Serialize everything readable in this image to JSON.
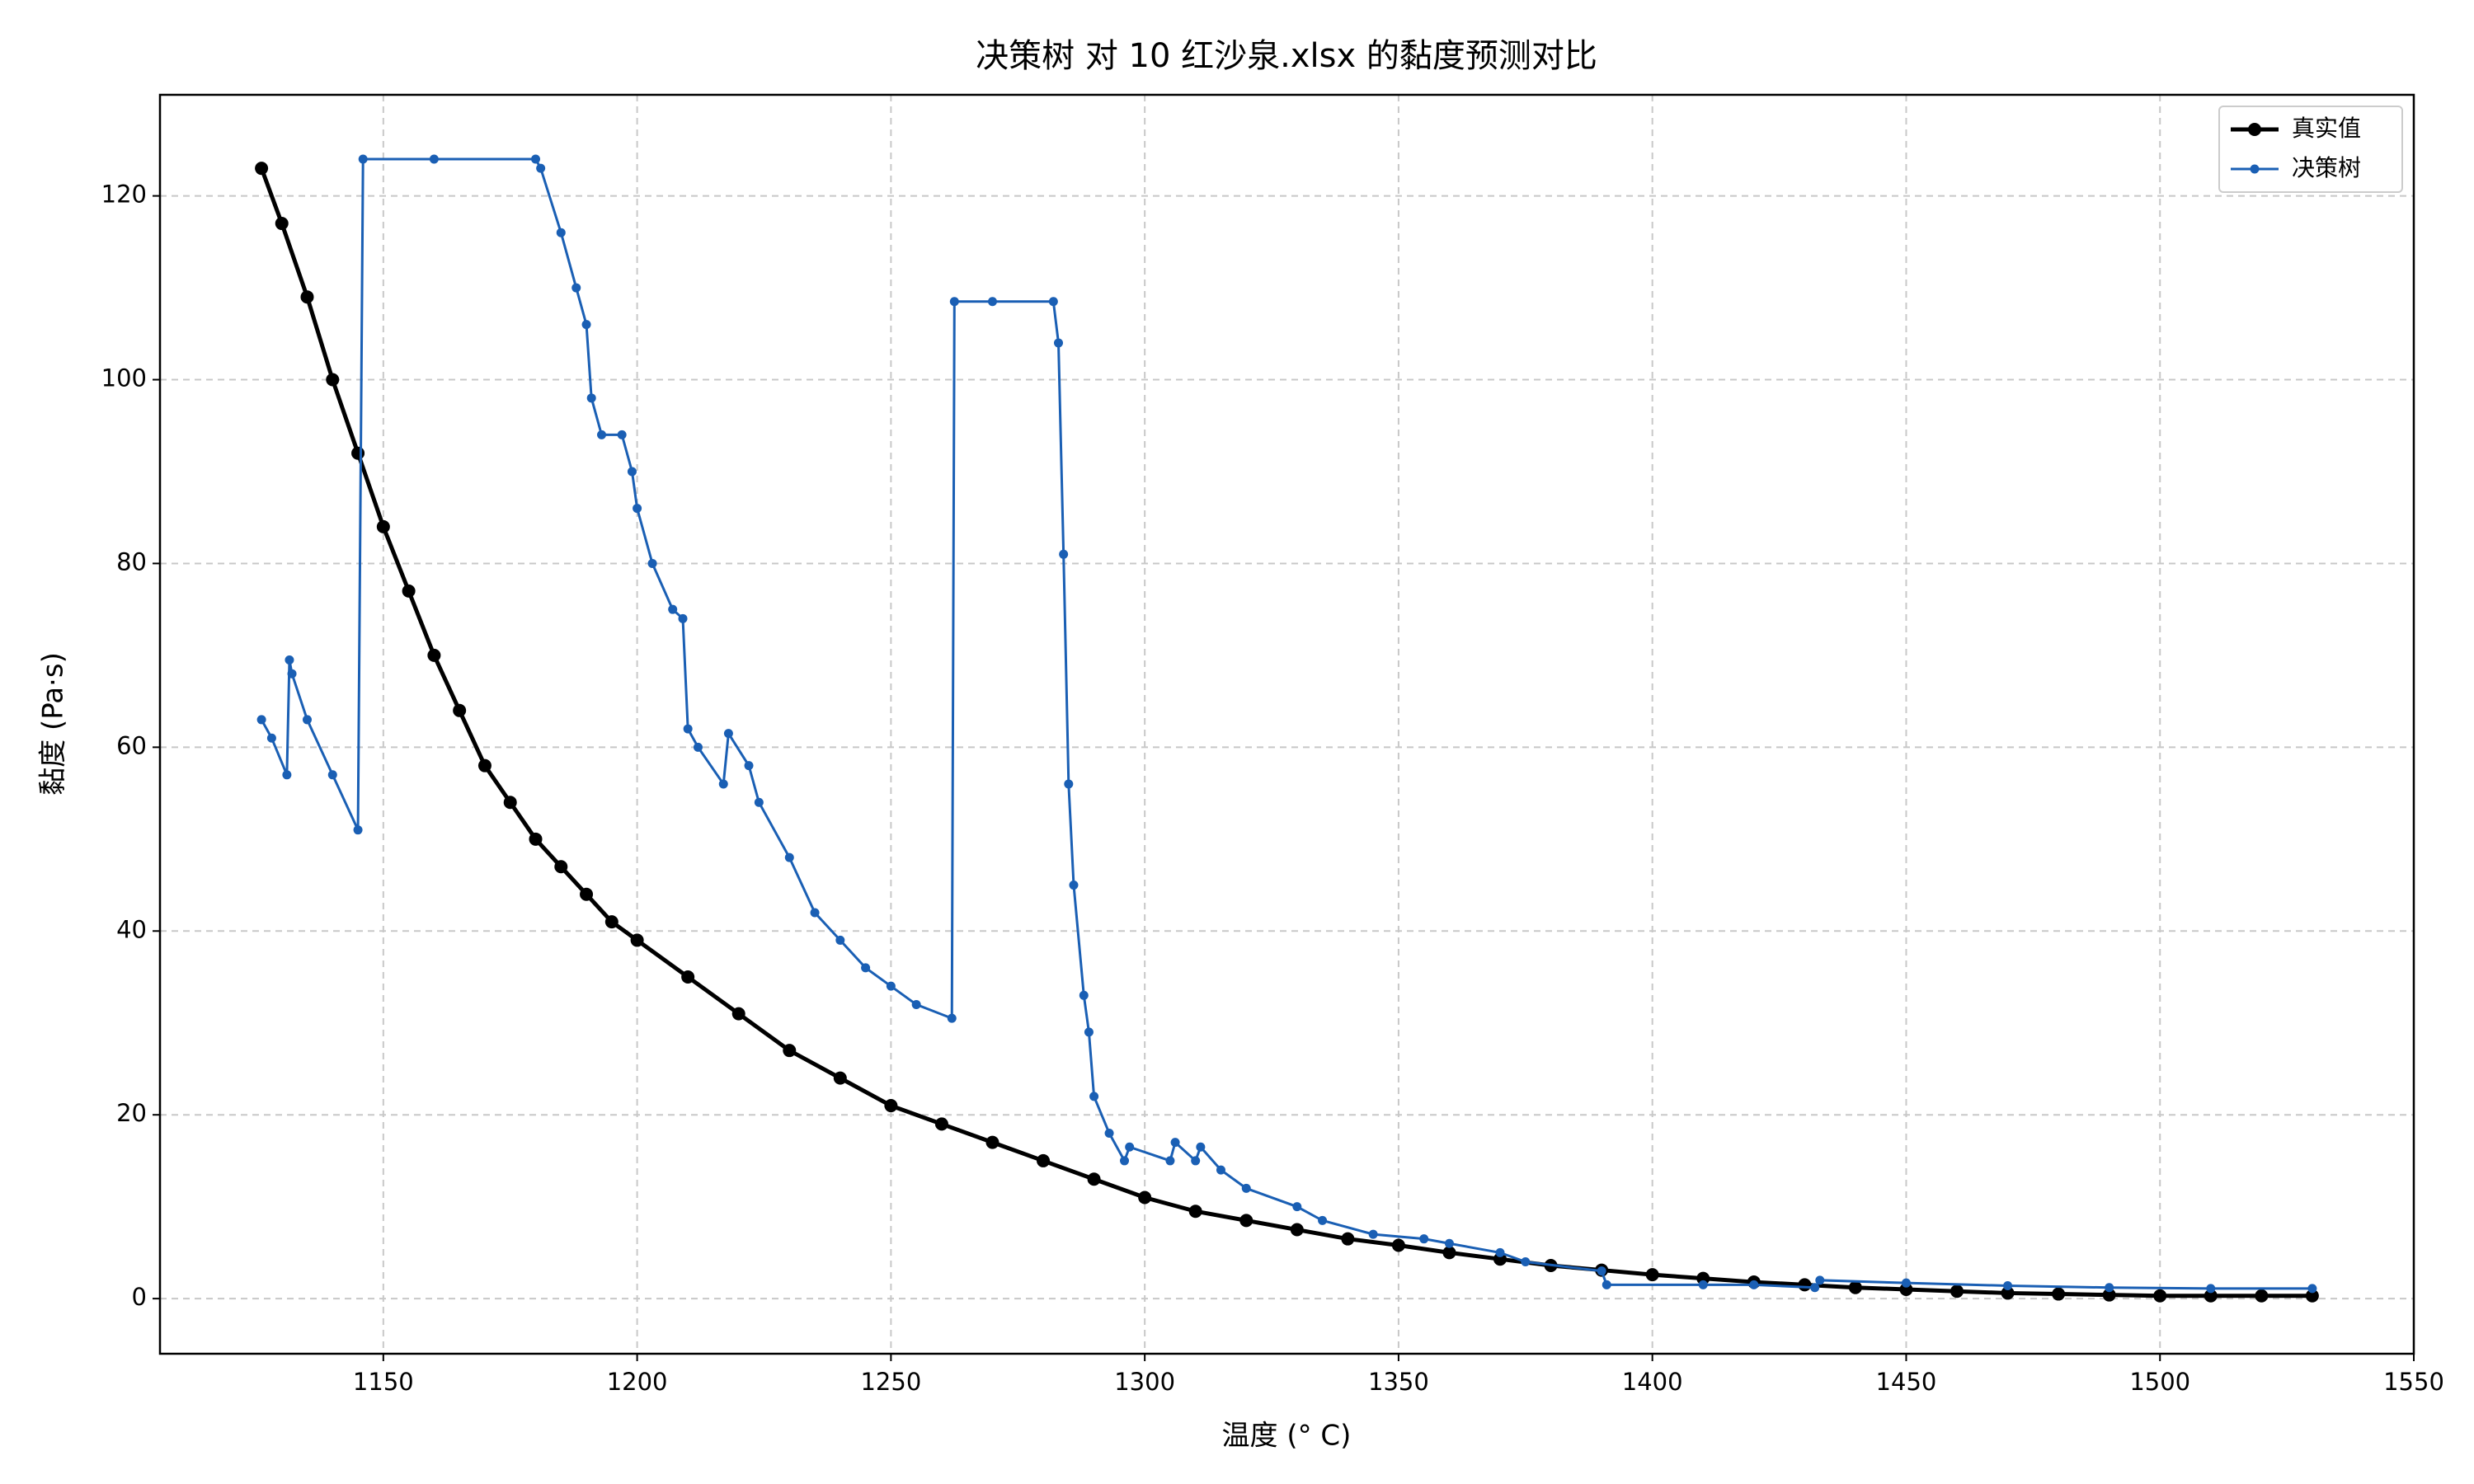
{
  "chart_data": {
    "type": "line",
    "title": "决策树 对 10 红沙泉.xlsx 的黏度预测对比",
    "x_label": "温度 (° C)",
    "y_label": "黏度 (Pa·s)",
    "xlim": [
      1106,
      1550
    ],
    "xticks": [
      1150,
      1200,
      1250,
      1300,
      1350,
      1400,
      1450,
      1500,
      1550
    ],
    "ylim": [
      -6,
      131
    ],
    "yticks": [
      0,
      20,
      40,
      60,
      80,
      100,
      120
    ],
    "grid": true,
    "legend": "upper right",
    "series": [
      {
        "name": "真实值",
        "color": "#000000",
        "x": [
          1126,
          1130,
          1135,
          1140,
          1145,
          1150,
          1155,
          1160,
          1165,
          1170,
          1175,
          1180,
          1185,
          1190,
          1195,
          1200,
          1210,
          1220,
          1230,
          1240,
          1250,
          1260,
          1270,
          1280,
          1290,
          1300,
          1310,
          1320,
          1330,
          1340,
          1350,
          1360,
          1370,
          1380,
          1390,
          1400,
          1410,
          1420,
          1430,
          1440,
          1450,
          1460,
          1470,
          1480,
          1490,
          1500,
          1510,
          1520,
          1530
        ],
        "values": [
          123,
          117,
          109,
          100,
          92,
          84,
          77,
          70,
          64,
          58,
          54,
          50,
          47,
          44,
          41,
          39,
          35,
          31,
          27,
          24,
          21,
          19,
          17,
          15,
          13,
          11,
          9.5,
          8.5,
          7.5,
          6.5,
          5.8,
          5,
          4.3,
          3.6,
          3.1,
          2.6,
          2.2,
          1.8,
          1.5,
          1.2,
          1,
          0.8,
          0.6,
          0.5,
          0.4,
          0.3,
          0.3,
          0.3,
          0.3
        ]
      },
      {
        "name": "决策树",
        "color": "#1a5fb4",
        "x": [
          1126,
          1128,
          1131,
          1131.5,
          1132,
          1135,
          1140,
          1145,
          1146,
          1160,
          1180,
          1181,
          1185,
          1188,
          1190,
          1191,
          1193,
          1197,
          1199,
          1200,
          1203,
          1207,
          1209,
          1210,
          1212,
          1217,
          1218,
          1222,
          1224,
          1230,
          1235,
          1240,
          1245,
          1250,
          1255,
          1262,
          1262.5,
          1270,
          1282,
          1283,
          1284,
          1285,
          1286,
          1288,
          1289,
          1290,
          1293,
          1296,
          1297,
          1305,
          1306,
          1310,
          1311,
          1315,
          1320,
          1330,
          1335,
          1345,
          1355,
          1360,
          1370,
          1375,
          1390,
          1391,
          1410,
          1420,
          1432,
          1433,
          1450,
          1470,
          1490,
          1510,
          1530
        ],
        "values": [
          63,
          61,
          57,
          69.5,
          68,
          63,
          57,
          51,
          124,
          124,
          124,
          123,
          116,
          110,
          106,
          98,
          94,
          94,
          90,
          86,
          80,
          75,
          74,
          62,
          60,
          56,
          61.5,
          58,
          54,
          48,
          42,
          39,
          36,
          34,
          32,
          30.5,
          108.5,
          108.5,
          108.5,
          104,
          81,
          56,
          45,
          33,
          29,
          22,
          18,
          15,
          16.5,
          15,
          17,
          15,
          16.5,
          14,
          12,
          10,
          8.5,
          7,
          6.5,
          6,
          5,
          4,
          3,
          1.5,
          1.5,
          1.5,
          1.2,
          2,
          1.7,
          1.4,
          1.2,
          1.1,
          1.1
        ]
      }
    ]
  }
}
